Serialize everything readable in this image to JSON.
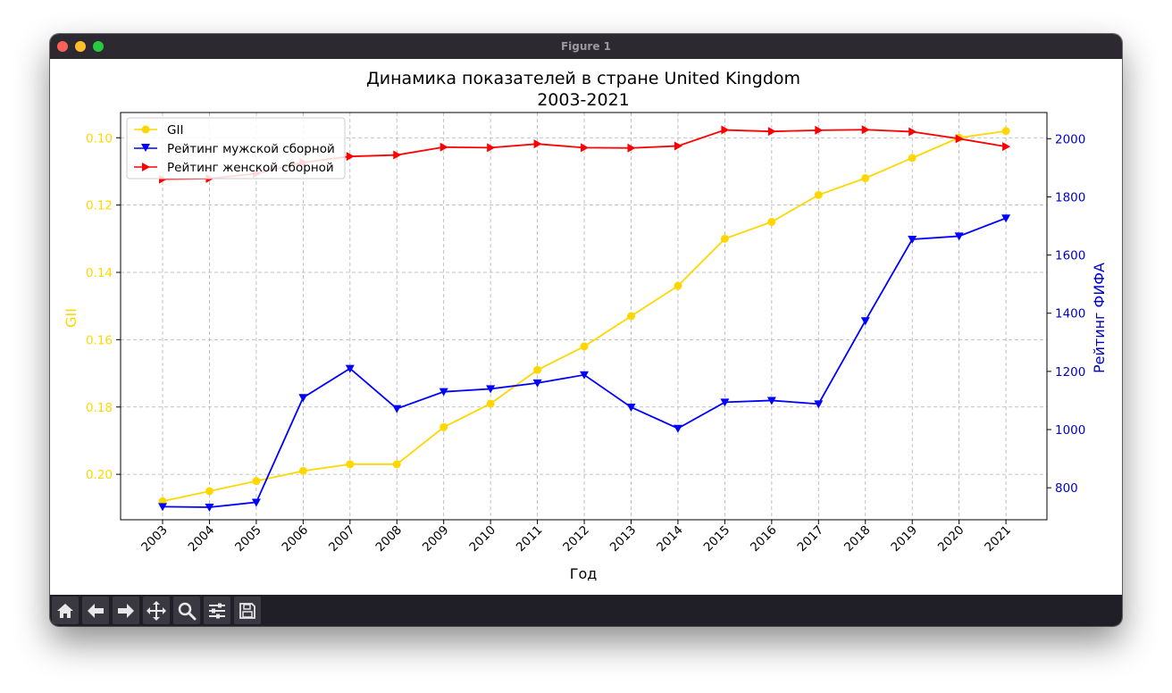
{
  "window": {
    "title": "Figure 1"
  },
  "toolbar": {
    "buttons": [
      {
        "icon": "home-icon"
      },
      {
        "icon": "back-arrow-icon"
      },
      {
        "icon": "forward-arrow-icon"
      },
      {
        "icon": "pan-icon"
      },
      {
        "icon": "zoom-icon"
      },
      {
        "icon": "configure-subplots-icon"
      },
      {
        "icon": "save-icon"
      }
    ]
  },
  "chart_data": {
    "type": "line",
    "title": "Динамика показателей в стране United Kingdom",
    "subtitle": "2003-2021",
    "xlabel": "Год",
    "ylabel_left": "GII",
    "ylabel_right": "Рейтинг ФИФА",
    "left_axis_inverted": true,
    "ylim_left": [
      0.2135,
      0.0925
    ],
    "ylim_right": [
      690,
      2090
    ],
    "yticks_left": [
      "0.10",
      "0.12",
      "0.14",
      "0.16",
      "0.18",
      "0.20"
    ],
    "yticks_right": [
      "800",
      "1000",
      "1200",
      "1400",
      "1600",
      "1800",
      "2000"
    ],
    "grid": true,
    "legend_position": "top-left",
    "colors": {
      "gii": "#ffd700",
      "men": "#0000ff",
      "women": "#ff0000",
      "left_axis": "#ffd700",
      "right_axis": "#0000cc"
    },
    "x": [
      "2003",
      "2004",
      "2005",
      "2006",
      "2007",
      "2008",
      "2009",
      "2010",
      "2011",
      "2012",
      "2013",
      "2014",
      "2015",
      "2016",
      "2017",
      "2018",
      "2019",
      "2020",
      "2021"
    ],
    "series": [
      {
        "name": "GII",
        "axis": "left",
        "marker": "circle",
        "values": [
          0.208,
          0.205,
          0.202,
          0.199,
          0.197,
          0.197,
          0.186,
          0.179,
          0.169,
          0.162,
          0.153,
          0.144,
          0.13,
          0.125,
          0.117,
          0.112,
          0.106,
          0.1,
          0.098
        ]
      },
      {
        "name": "Рейтинг мужской сборной",
        "axis": "right",
        "marker": "triangle-down",
        "values": [
          735,
          733,
          750,
          1110,
          1210,
          1072,
          1130,
          1140,
          1160,
          1188,
          1077,
          1004,
          1094,
          1100,
          1088,
          1374,
          1654,
          1665,
          1727
        ]
      },
      {
        "name": "Рейтинг женской сборной",
        "axis": "right",
        "marker": "triangle-right",
        "values": [
          1861,
          1863,
          1880,
          1918,
          1939,
          1944,
          1971,
          1969,
          1982,
          1969,
          1968,
          1975,
          2030,
          2025,
          2029,
          2031,
          2024,
          2000,
          1973
        ]
      }
    ]
  }
}
